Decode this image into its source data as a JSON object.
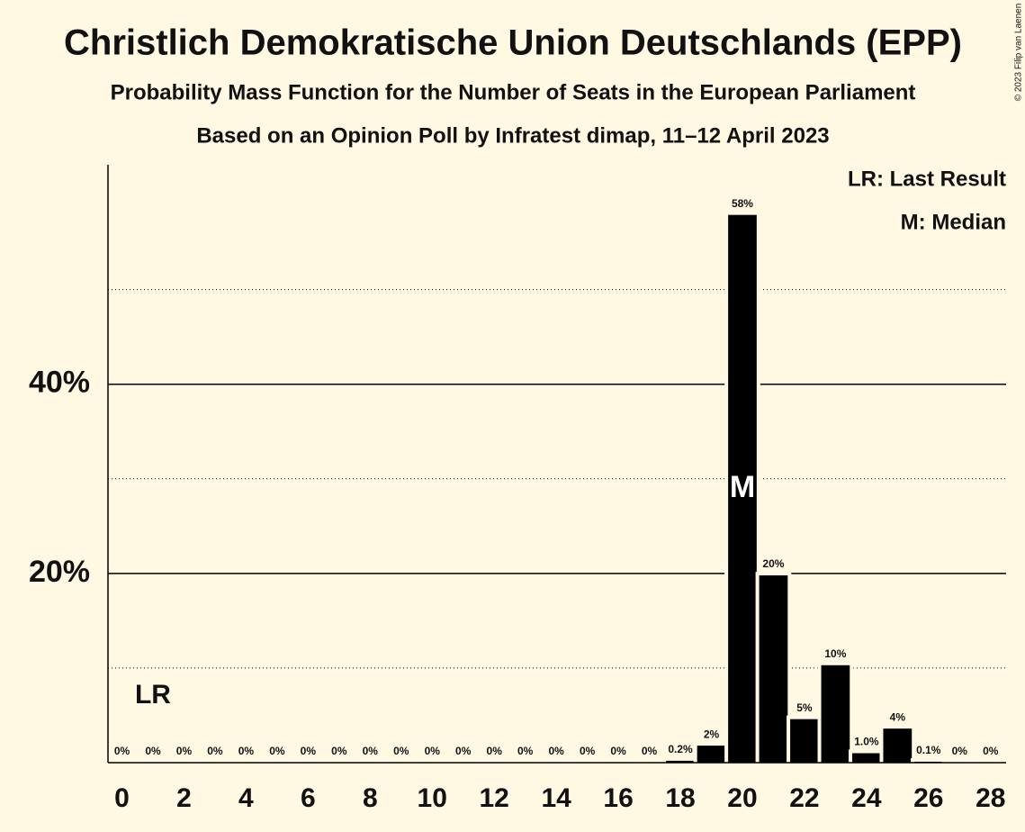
{
  "chart_data": {
    "type": "bar",
    "title": "Christlich Demokratische Union Deutschlands (EPP)",
    "subtitle": "Probability Mass Function for the Number of Seats in the European Parliament",
    "subtitle2": "Based on an Opinion Poll by Infratest dimap, 11–12 April 2023",
    "credit": "© 2023 Filip van Laenen",
    "legend": [
      "LR: Last Result",
      "M: Median"
    ],
    "last_result": 1,
    "last_result_label": "LR",
    "median": 20,
    "median_label": "M",
    "color": "#000000",
    "x": [
      0,
      1,
      2,
      3,
      4,
      5,
      6,
      7,
      8,
      9,
      10,
      11,
      12,
      13,
      14,
      15,
      16,
      17,
      18,
      19,
      20,
      21,
      22,
      23,
      24,
      25,
      26,
      27,
      28
    ],
    "values": [
      0,
      0,
      0,
      0,
      0,
      0,
      0,
      0,
      0,
      0,
      0,
      0,
      0,
      0,
      0,
      0,
      0,
      0,
      0.2,
      1.8,
      57.9,
      19.8,
      4.6,
      10.3,
      1.0,
      3.6,
      0.1,
      0,
      0
    ],
    "value_labels": [
      "0%",
      "0%",
      "0%",
      "0%",
      "0%",
      "0%",
      "0%",
      "0%",
      "0%",
      "0%",
      "0%",
      "0%",
      "0%",
      "0%",
      "0%",
      "0%",
      "0%",
      "0%",
      "0.2%",
      "2%",
      "58%",
      "20%",
      "5%",
      "10%",
      "1.0%",
      "4%",
      "0.1%",
      "0%",
      "0%"
    ],
    "xlim": [
      -0.45,
      28.5
    ],
    "xticks": [
      0,
      2,
      4,
      6,
      8,
      10,
      12,
      14,
      16,
      18,
      20,
      22,
      24,
      26,
      28
    ],
    "ylim": [
      0,
      63.2
    ],
    "yticks": [
      {
        "value": 20,
        "label": "20%"
      },
      {
        "value": 40,
        "label": "40%"
      }
    ],
    "minor_yticks": [
      10,
      30,
      50
    ],
    "grid": true
  }
}
